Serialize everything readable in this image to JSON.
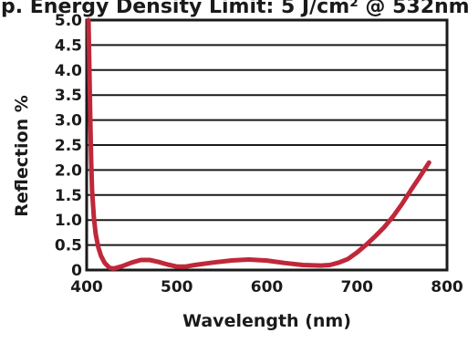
{
  "header": {
    "cropped_title": "p. Energy Density Limit: 5 J/cm² @ 532nm"
  },
  "chart_data": {
    "type": "line",
    "xlabel": "Wavelength (nm)",
    "ylabel": "Reflection %",
    "xlim": [
      400,
      800
    ],
    "ylim": [
      0,
      5
    ],
    "x_ticks": [
      400,
      500,
      600,
      700,
      800
    ],
    "y_ticks": [
      "0",
      "0.5",
      "1.0",
      "1.5",
      "2.0",
      "2.5",
      "3.0",
      "3.5",
      "4.0",
      "4.5",
      "5.0"
    ],
    "grid": "horizontal",
    "series": [
      {
        "color": "#c0283a",
        "x": [
          402,
          403,
          404,
          405,
          406,
          408,
          410,
          413,
          416,
          420,
          425,
          430,
          440,
          450,
          460,
          470,
          480,
          490,
          500,
          510,
          520,
          540,
          560,
          580,
          600,
          620,
          640,
          660,
          670,
          680,
          690,
          700,
          710,
          720,
          730,
          740,
          750,
          760,
          770,
          780
        ],
        "y": [
          5.0,
          4.0,
          3.0,
          2.2,
          1.6,
          1.05,
          0.72,
          0.45,
          0.28,
          0.14,
          0.05,
          0.03,
          0.08,
          0.15,
          0.2,
          0.2,
          0.16,
          0.11,
          0.07,
          0.07,
          0.1,
          0.15,
          0.19,
          0.21,
          0.19,
          0.14,
          0.1,
          0.09,
          0.1,
          0.15,
          0.22,
          0.35,
          0.5,
          0.67,
          0.85,
          1.07,
          1.32,
          1.6,
          1.87,
          2.15
        ]
      }
    ]
  }
}
